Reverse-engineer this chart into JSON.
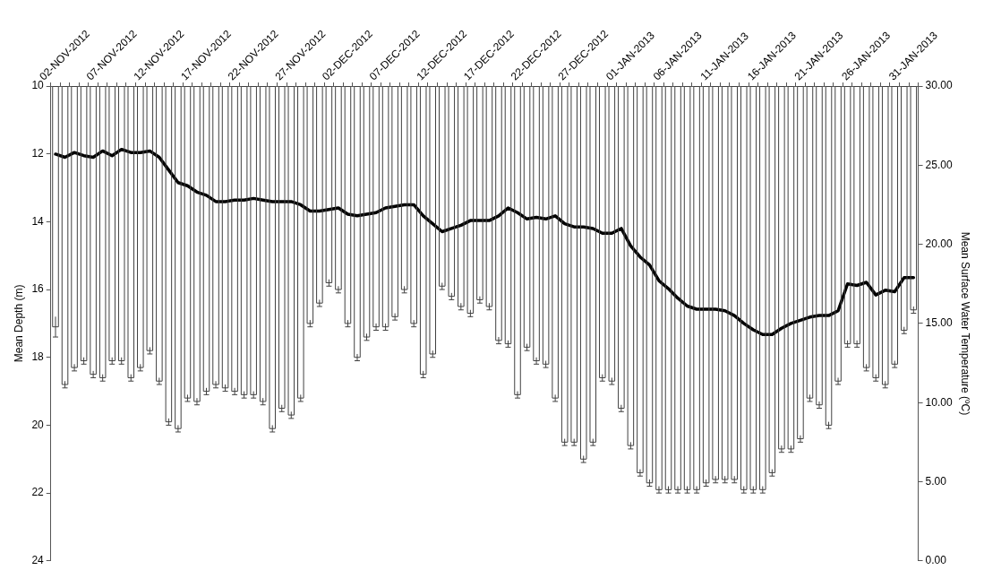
{
  "chart_data": {
    "type": "bar",
    "categories": [
      null,
      "02-NOV-2012",
      null,
      null,
      null,
      null,
      "07-NOV-2012",
      null,
      null,
      null,
      null,
      "12-NOV-2012",
      null,
      null,
      null,
      null,
      "17-NOV-2012",
      null,
      null,
      null,
      null,
      "22-NOV-2012",
      null,
      null,
      null,
      null,
      "27-NOV-2012",
      null,
      null,
      null,
      null,
      "02-DEC-2012",
      null,
      null,
      null,
      null,
      "07-DEC-2012",
      null,
      null,
      null,
      null,
      "12-DEC-2012",
      null,
      null,
      null,
      null,
      "17-DEC-2012",
      null,
      null,
      null,
      null,
      "22-DEC-2012",
      null,
      null,
      null,
      null,
      "27-DEC-2012",
      null,
      null,
      null,
      null,
      "01-JAN-2013",
      null,
      null,
      null,
      null,
      "06-JAN-2013",
      null,
      null,
      null,
      null,
      "11-JAN-2013",
      null,
      null,
      null,
      null,
      "16-JAN-2013",
      null,
      null,
      null,
      null,
      "21-JAN-2013",
      null,
      null,
      null,
      null,
      "26-JAN-2013",
      null,
      null,
      null,
      null,
      "31-JAN-2013"
    ],
    "ylabel": "Mean Depth (m)",
    "y2label": "Mean Surface Water Temperature (ºC)",
    "ylim": [
      24,
      10
    ],
    "yticks": [
      10,
      12,
      14,
      16,
      18,
      20,
      22,
      24
    ],
    "y2lim": [
      0,
      30
    ],
    "y2ticks": [
      {
        "value": 0,
        "label": "0.00"
      },
      {
        "value": 5,
        "label": "5.00"
      },
      {
        "value": 10,
        "label": "10.00"
      },
      {
        "value": 15,
        "label": "15.00"
      },
      {
        "value": 20,
        "label": "20.00"
      },
      {
        "value": 25,
        "label": "25.00"
      },
      {
        "value": 30,
        "label": "30.00"
      }
    ],
    "legend": false,
    "grid": false,
    "series": [
      {
        "color": "#ffffff",
        "values": [
          17.1,
          18.8,
          18.3,
          18.1,
          18.5,
          18.6,
          18.1,
          18.1,
          18.6,
          18.3,
          17.8,
          18.7,
          19.9,
          20.1,
          19.2,
          19.3,
          19.0,
          18.8,
          18.9,
          19.0,
          19.1,
          19.1,
          19.3,
          20.1,
          19.5,
          19.7,
          19.2,
          17.0,
          16.4,
          15.8,
          16.0,
          17.0,
          18.0,
          17.4,
          17.1,
          17.1,
          16.8,
          16.0,
          17.0,
          18.5,
          17.9,
          15.9,
          16.2,
          16.5,
          16.7,
          16.3,
          16.5,
          17.5,
          17.6,
          19.1,
          17.7,
          18.1,
          18.2,
          19.2,
          20.5,
          20.5,
          21.0,
          20.5,
          18.6,
          18.7,
          19.5,
          20.6,
          21.4,
          21.7,
          21.9,
          21.9,
          21.9,
          21.9,
          21.9,
          21.7,
          21.6,
          21.6,
          21.6,
          21.9,
          21.9,
          21.9,
          21.4,
          20.7,
          20.7,
          20.4,
          19.2,
          19.4,
          20.0,
          18.7,
          17.6,
          17.6,
          18.3,
          18.6,
          18.8,
          18.2,
          17.2,
          16.6
        ],
        "errors": [
          0.3,
          0.1,
          0.1,
          0.1,
          0.1,
          0.1,
          0.1,
          0.1,
          0.1,
          0.1,
          0.1,
          0.1,
          0.1,
          0.1,
          0.1,
          0.1,
          0.1,
          0.1,
          0.1,
          0.1,
          0.1,
          0.1,
          0.1,
          0.1,
          0.1,
          0.1,
          0.1,
          0.1,
          0.1,
          0.1,
          0.1,
          0.1,
          0.1,
          0.1,
          0.1,
          0.1,
          0.1,
          0.1,
          0.1,
          0.1,
          0.1,
          0.1,
          0.1,
          0.1,
          0.1,
          0.1,
          0.1,
          0.1,
          0.1,
          0.1,
          0.1,
          0.1,
          0.1,
          0.1,
          0.1,
          0.1,
          0.1,
          0.1,
          0.1,
          0.1,
          0.1,
          0.1,
          0.1,
          0.1,
          0.1,
          0.1,
          0.1,
          0.1,
          0.1,
          0.1,
          0.1,
          0.1,
          0.1,
          0.1,
          0.1,
          0.1,
          0.1,
          0.1,
          0.1,
          0.1,
          0.1,
          0.1,
          0.1,
          0.1,
          0.1,
          0.1,
          0.1,
          0.1,
          0.1,
          0.1,
          0.1,
          0.1
        ]
      },
      {
        "type": "line",
        "axis": "y2",
        "color": "#000000",
        "marker": "none",
        "line_style": "solid",
        "values": [
          25.7,
          25.5,
          25.8,
          25.6,
          25.5,
          25.9,
          25.6,
          26.0,
          25.8,
          25.8,
          25.9,
          25.5,
          24.7,
          23.9,
          23.7,
          23.3,
          23.1,
          22.7,
          22.7,
          22.8,
          22.8,
          22.9,
          22.8,
          22.7,
          22.7,
          22.7,
          22.5,
          22.1,
          22.1,
          22.2,
          22.3,
          21.9,
          21.8,
          21.9,
          22.0,
          22.3,
          22.4,
          22.5,
          22.5,
          21.8,
          21.3,
          20.8,
          21.0,
          21.2,
          21.5,
          21.5,
          21.5,
          21.8,
          22.3,
          22.0,
          21.6,
          21.7,
          21.6,
          21.8,
          21.3,
          21.1,
          21.1,
          21.0,
          20.7,
          20.7,
          21.0,
          19.9,
          19.2,
          18.7,
          17.7,
          17.2,
          16.6,
          16.1,
          15.9,
          15.9,
          15.9,
          15.8,
          15.5,
          15.0,
          14.6,
          14.3,
          14.3,
          14.7,
          15.0,
          15.2,
          15.4,
          15.5,
          15.5,
          15.8,
          17.5,
          17.4,
          17.6,
          16.8,
          17.1,
          17.0,
          17.9,
          17.9
        ]
      }
    ]
  }
}
